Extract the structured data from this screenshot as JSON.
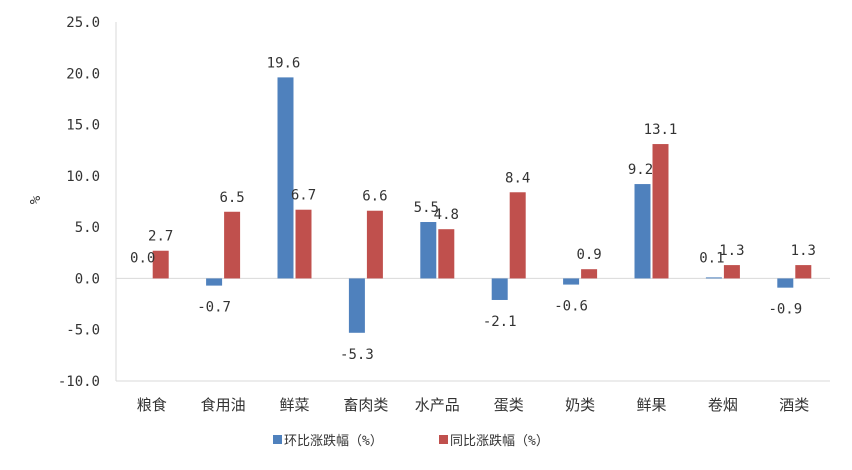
{
  "chart_data": {
    "type": "bar",
    "ylabel": "%",
    "ylim": [
      -10,
      25
    ],
    "ytick_step": 5,
    "ytick_labels": [
      "-10.0",
      "-5.0",
      "0.0",
      "5.0",
      "10.0",
      "15.0",
      "20.0",
      "25.0"
    ],
    "grid": false,
    "legend": "bottom",
    "categories": [
      "粮食",
      "食用油",
      "鲜菜",
      "畜肉类",
      "水产品",
      "蛋类",
      "奶类",
      "鲜果",
      "卷烟",
      "酒类"
    ],
    "series": [
      {
        "name": "环比涨跌幅（%）",
        "color": "#4F81BD",
        "values": [
          0.0,
          -0.7,
          19.6,
          -5.3,
          5.5,
          -2.1,
          -0.6,
          9.2,
          0.1,
          -0.9
        ],
        "labels": [
          "0.0",
          "-0.7",
          "19.6",
          "-5.3",
          "5.5",
          "-2.1",
          "-0.6",
          "9.2",
          "0.1",
          "-0.9"
        ]
      },
      {
        "name": "同比涨跌幅（%）",
        "color": "#C0504D",
        "values": [
          2.7,
          6.5,
          6.7,
          6.6,
          4.8,
          8.4,
          0.9,
          13.1,
          1.3,
          1.3
        ],
        "labels": [
          "2.7",
          "6.5",
          "6.7",
          "6.6",
          "4.8",
          "8.4",
          "0.9",
          "13.1",
          "1.3",
          "1.3"
        ]
      }
    ]
  }
}
